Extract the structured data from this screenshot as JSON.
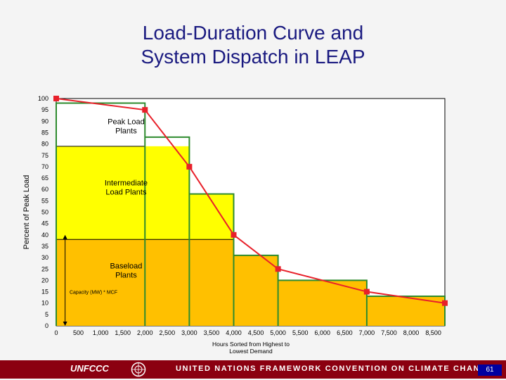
{
  "slide": {
    "title_line1": "Load-Duration Curve and",
    "title_line2": "System Dispatch in LEAP",
    "page_number": "61"
  },
  "footer": {
    "logo_text": "UNFCCC",
    "convention_text": "UNITED NATIONS FRAMEWORK CONVENTION ON CLIMATE CHANGE"
  },
  "colors": {
    "title": "#1a1a80",
    "curve": "#e8202a",
    "step_line": "#2e8b2e",
    "peak_fill": "#ffffff",
    "intermediate_fill": "#ffff00",
    "baseload_fill": "#ffc000",
    "footer_band": "#8b0010"
  },
  "chart_data": {
    "type": "line",
    "title": "Load-Duration Curve and System Dispatch in LEAP",
    "xlabel": "Hours Sorted from Highest to Lowest Demand",
    "ylabel": "Percent of Peak Load",
    "xlim": [
      0,
      8760
    ],
    "ylim": [
      0,
      100
    ],
    "x_ticks": [
      0,
      500,
      1000,
      1500,
      2000,
      2500,
      3000,
      3500,
      4000,
      4500,
      5000,
      5500,
      6000,
      6500,
      7000,
      7500,
      8000,
      8500
    ],
    "x_tick_labels": [
      "0",
      "500",
      "1,000",
      "1,500",
      "2,000",
      "2,500",
      "3,000",
      "3,500",
      "4,000",
      "4,500",
      "5,000",
      "5,500",
      "6,000",
      "6,500",
      "7,000",
      "7,500",
      "8,000",
      "8,500"
    ],
    "y_ticks": [
      0,
      5,
      10,
      15,
      20,
      25,
      30,
      35,
      40,
      45,
      50,
      55,
      60,
      65,
      70,
      75,
      80,
      85,
      90,
      95,
      100
    ],
    "y_tick_labels": [
      "0",
      "5",
      "10",
      "15",
      "20",
      "25",
      "30",
      "35",
      "40",
      "45",
      "50",
      "55",
      "60",
      "65",
      "70",
      "75",
      "80",
      "85",
      "90",
      "95",
      "100"
    ],
    "series": [
      {
        "name": "Load-duration curve",
        "x": [
          0,
          2000,
          3000,
          4000,
          5000,
          7000,
          8760
        ],
        "y": [
          100,
          95,
          70,
          40,
          25,
          15,
          10
        ]
      }
    ],
    "steps": [
      {
        "x_start": 0,
        "x_end": 2000,
        "y": 98
      },
      {
        "x_start": 2000,
        "x_end": 3000,
        "y": 83
      },
      {
        "x_start": 3000,
        "x_end": 4000,
        "y": 58
      },
      {
        "x_start": 4000,
        "x_end": 5000,
        "y": 31
      },
      {
        "x_start": 5000,
        "x_end": 7000,
        "y": 20
      },
      {
        "x_start": 7000,
        "x_end": 8760,
        "y": 13
      }
    ],
    "bands": [
      {
        "name": "Peak Load Plants",
        "label_lines": [
          "Peak Load",
          "Plants"
        ],
        "y_from": 79,
        "label_x": 1100,
        "label_y": 87.5
      },
      {
        "name": "Intermediate Load Plants",
        "label_lines": [
          "Intermediate",
          "Load Plants"
        ],
        "y_from": 38,
        "y_to": 79,
        "label_x": 1100,
        "label_y": 60.5
      },
      {
        "name": "Baseload Plants",
        "label_lines": [
          "Baseload",
          "Plants"
        ],
        "y_from": 0,
        "y_to": 38,
        "label_x": 1100,
        "label_y": 24
      }
    ],
    "annotation": {
      "text": "Capacity (MW) * MCF",
      "x": 300,
      "y": 15,
      "arrow_x": 200,
      "arrow_from": 0,
      "arrow_to": 40
    }
  }
}
